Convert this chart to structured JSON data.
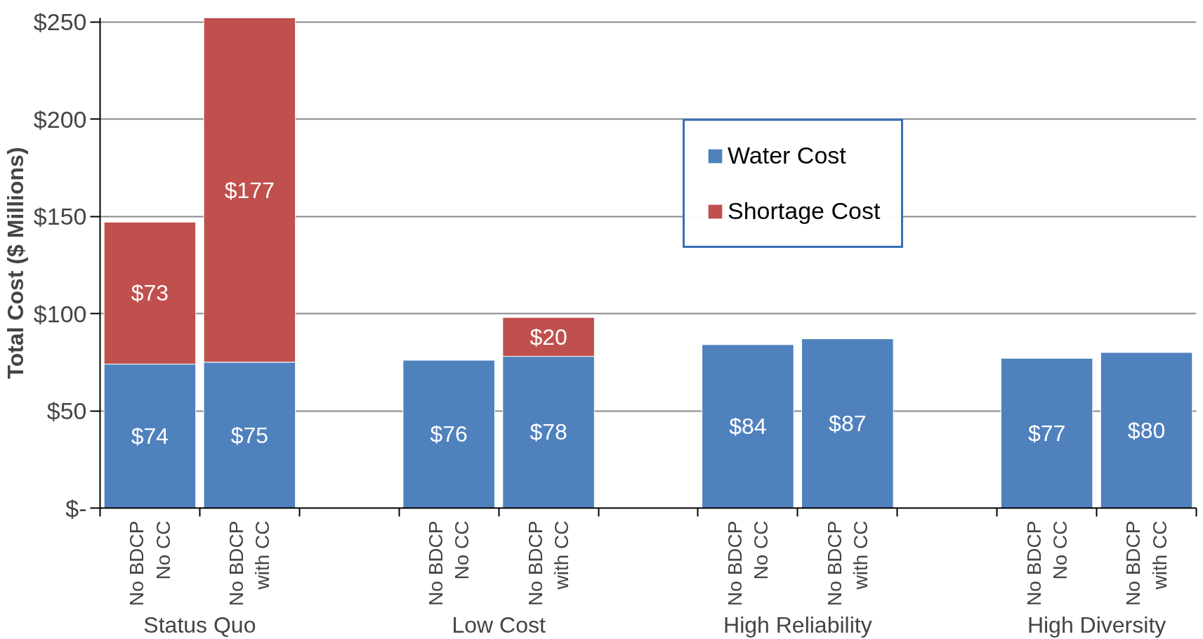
{
  "chart_data": {
    "type": "bar",
    "stacked": true,
    "ylabel": "Total Cost ($ Millions)",
    "categories": [
      "No BDCP\nNo CC",
      "No BDCP\nwith CC",
      null,
      "No BDCP\nNo CC",
      "No BDCP\nwith CC",
      null,
      "No BDCP\nNo CC",
      "No BDCP\nwith CC",
      null,
      "No BDCP\nNo CC",
      "No BDCP\nwith CC"
    ],
    "series": [
      {
        "name": "Water Cost",
        "color": "#4f81bd",
        "values": [
          74,
          75,
          null,
          76,
          78,
          null,
          84,
          87,
          null,
          77,
          80
        ],
        "value_labels": [
          "$74",
          "$75",
          null,
          "$76",
          "$78",
          null,
          "$84",
          "$87",
          null,
          "$77",
          "$80"
        ]
      },
      {
        "name": "Shortage Cost",
        "color": "#c0504d",
        "values": [
          73,
          177,
          null,
          null,
          20,
          null,
          null,
          null,
          null,
          null,
          null
        ],
        "value_labels": [
          "$73",
          "$177",
          null,
          null,
          "$20",
          null,
          null,
          null,
          null,
          null,
          null
        ]
      }
    ],
    "annotations": [
      "Status Quo",
      "Low Cost",
      "High Reliability",
      "High Diversity"
    ],
    "ylim": [
      0,
      252
    ],
    "yticks": [
      {
        "value": 0,
        "label": "$-"
      },
      {
        "value": 50,
        "label": "$50"
      },
      {
        "value": 100,
        "label": "$100"
      },
      {
        "value": 150,
        "label": "$150"
      },
      {
        "value": 200,
        "label": "$200"
      },
      {
        "value": 250,
        "label": "$250"
      }
    ],
    "grid": "y",
    "legend": "top right"
  }
}
